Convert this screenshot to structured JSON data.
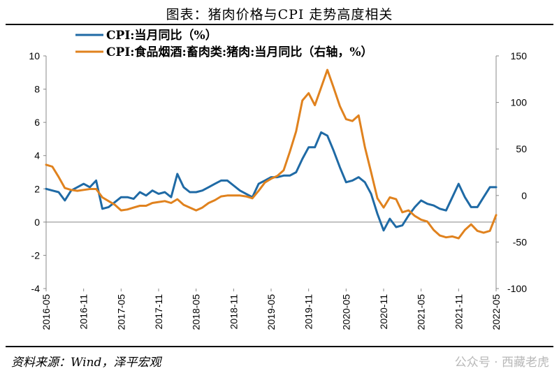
{
  "header": {
    "title": "图表：猪肉价格与CPI 走势高度相关"
  },
  "footer": {
    "source": "资料来源：Wind，泽平宏观",
    "watermark": "公众号 · 西藏老虎"
  },
  "chart_data": {
    "type": "line",
    "title": "图表：猪肉价格与CPI 走势高度相关",
    "x_ticks": [
      "2016-05",
      "2016-11",
      "2017-05",
      "2017-11",
      "2018-05",
      "2018-11",
      "2019-05",
      "2019-11",
      "2020-05",
      "2020-11",
      "2021-05",
      "2021-11",
      "2022-05"
    ],
    "x": [
      "2016-05",
      "2016-06",
      "2016-07",
      "2016-08",
      "2016-09",
      "2016-10",
      "2016-11",
      "2016-12",
      "2017-01",
      "2017-02",
      "2017-03",
      "2017-04",
      "2017-05",
      "2017-06",
      "2017-07",
      "2017-08",
      "2017-09",
      "2017-10",
      "2017-11",
      "2017-12",
      "2018-01",
      "2018-02",
      "2018-03",
      "2018-04",
      "2018-05",
      "2018-06",
      "2018-07",
      "2018-08",
      "2018-09",
      "2018-10",
      "2018-11",
      "2018-12",
      "2019-01",
      "2019-02",
      "2019-03",
      "2019-04",
      "2019-05",
      "2019-06",
      "2019-07",
      "2019-08",
      "2019-09",
      "2019-10",
      "2019-11",
      "2019-12",
      "2020-01",
      "2020-02",
      "2020-03",
      "2020-04",
      "2020-05",
      "2020-06",
      "2020-07",
      "2020-08",
      "2020-09",
      "2020-10",
      "2020-11",
      "2020-12",
      "2021-01",
      "2021-02",
      "2021-03",
      "2021-04",
      "2021-05",
      "2021-06",
      "2021-07",
      "2021-08",
      "2021-09",
      "2021-10",
      "2021-11",
      "2021-12",
      "2022-01",
      "2022-02",
      "2022-03",
      "2022-04",
      "2022-05"
    ],
    "left_axis": {
      "ylim": [
        -4,
        10
      ],
      "ticks": [
        "-4",
        "-2",
        "0",
        "2",
        "4",
        "6",
        "8",
        "10"
      ]
    },
    "right_axis": {
      "ylim": [
        -100,
        150
      ],
      "ticks": [
        "-100",
        "-50",
        "0",
        "50",
        "100",
        "150"
      ]
    },
    "legend_position": "top-left",
    "series": [
      {
        "name": "CPI:当月同比（%）",
        "axis": "left",
        "color": "#1f6aa5",
        "values": [
          2.0,
          1.9,
          1.8,
          1.3,
          1.9,
          2.1,
          2.3,
          2.1,
          2.5,
          0.8,
          0.9,
          1.2,
          1.5,
          1.5,
          1.4,
          1.8,
          1.6,
          1.9,
          1.7,
          1.8,
          1.5,
          2.9,
          2.1,
          1.8,
          1.8,
          1.9,
          2.1,
          2.3,
          2.5,
          2.5,
          2.2,
          1.9,
          1.7,
          1.5,
          2.3,
          2.5,
          2.7,
          2.7,
          2.8,
          2.8,
          3.0,
          3.8,
          4.5,
          4.5,
          5.4,
          5.2,
          4.3,
          3.3,
          2.4,
          2.5,
          2.7,
          2.4,
          1.7,
          0.5,
          -0.5,
          0.2,
          -0.3,
          -0.2,
          0.4,
          0.9,
          1.3,
          1.1,
          1.0,
          0.8,
          0.7,
          1.5,
          2.3,
          1.5,
          0.9,
          0.9,
          1.5,
          2.1,
          2.1
        ]
      },
      {
        "name": "CPI:食品烟酒:畜肉类:猪肉:当月同比（右轴，%）",
        "axis": "right",
        "color": "#e0821e",
        "values": [
          33,
          31,
          20,
          8,
          6,
          5,
          6,
          7,
          7,
          -2,
          -6,
          -10,
          -16,
          -15,
          -13,
          -11,
          -11,
          -8,
          -7,
          -6,
          -8,
          -4,
          -10,
          -13,
          -16,
          -13,
          -8,
          -5,
          -1,
          0,
          0,
          0,
          -1,
          -3,
          5,
          14,
          18,
          21,
          27,
          47,
          69,
          102,
          110,
          97,
          116,
          135,
          116,
          96,
          82,
          80,
          86,
          52,
          25,
          -3,
          -13,
          -2,
          -4,
          -18,
          -16,
          -22,
          -26,
          -28,
          -37,
          -43,
          -45,
          -44,
          -46,
          -37,
          -31,
          -38,
          -40,
          -38,
          -21
        ]
      }
    ]
  }
}
